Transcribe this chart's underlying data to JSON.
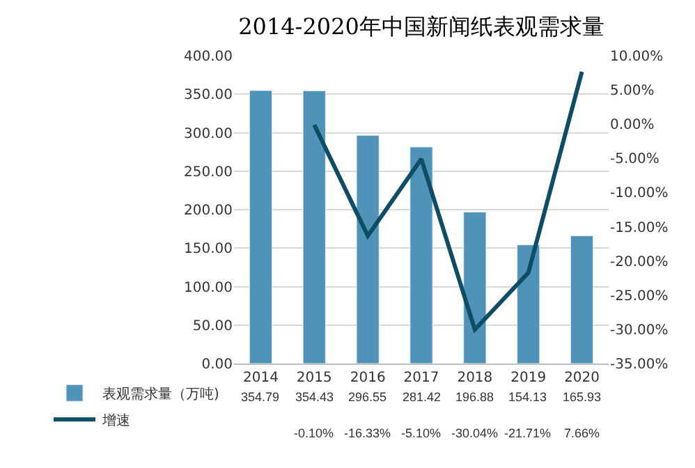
{
  "chart_data": {
    "type": "bar",
    "title": "2014-2020年中国新闻纸表观需求量",
    "categories": [
      "2014",
      "2015",
      "2016",
      "2017",
      "2018",
      "2019",
      "2020"
    ],
    "series": [
      {
        "name": "表观需求量（万吨)",
        "color": "#4f94b8",
        "values": [
          354.79,
          354.43,
          296.55,
          281.42,
          196.88,
          154.13,
          165.93
        ],
        "value_labels": [
          "354.79",
          "354.43",
          "296.55",
          "281.42",
          "196.88",
          "154.13",
          "165.93"
        ]
      },
      {
        "name": "增速",
        "type": "line",
        "axis": "y2",
        "color": "#0e4d64",
        "values": [
          null,
          -0.1,
          -16.33,
          -5.1,
          -30.04,
          -21.71,
          7.66
        ],
        "value_labels": [
          null,
          "-0.10%",
          "-16.33%",
          "-5.10%",
          "-30.04%",
          "-21.71%",
          "7.66%"
        ]
      }
    ],
    "ylim": [
      0,
      400
    ],
    "yticks": [
      {
        "value": 0,
        "label": "0.00"
      },
      {
        "value": 50,
        "label": "50.00"
      },
      {
        "value": 100,
        "label": "100.00"
      },
      {
        "value": 150,
        "label": "150.00"
      },
      {
        "value": 200,
        "label": "200.00"
      },
      {
        "value": 250,
        "label": "250.00"
      },
      {
        "value": 300,
        "label": "300.00"
      },
      {
        "value": 350,
        "label": "350.00"
      },
      {
        "value": 400,
        "label": "400.00"
      }
    ],
    "y2lim": [
      -35,
      10
    ],
    "y2ticks": [
      {
        "value": -35,
        "label": "-35.00%"
      },
      {
        "value": -30,
        "label": "-30.00%"
      },
      {
        "value": -25,
        "label": "-25.00%"
      },
      {
        "value": -20,
        "label": "-20.00%"
      },
      {
        "value": -15,
        "label": "-15.00%"
      },
      {
        "value": -10,
        "label": "-10.00%"
      },
      {
        "value": -5,
        "label": "-5.00%"
      },
      {
        "value": 0,
        "label": "0.00%"
      },
      {
        "value": 5,
        "label": "5.00%"
      },
      {
        "value": 10,
        "label": "10.00%"
      }
    ],
    "grid": "y",
    "legend": "bottom left",
    "marker": "none",
    "line_style": "solid"
  }
}
